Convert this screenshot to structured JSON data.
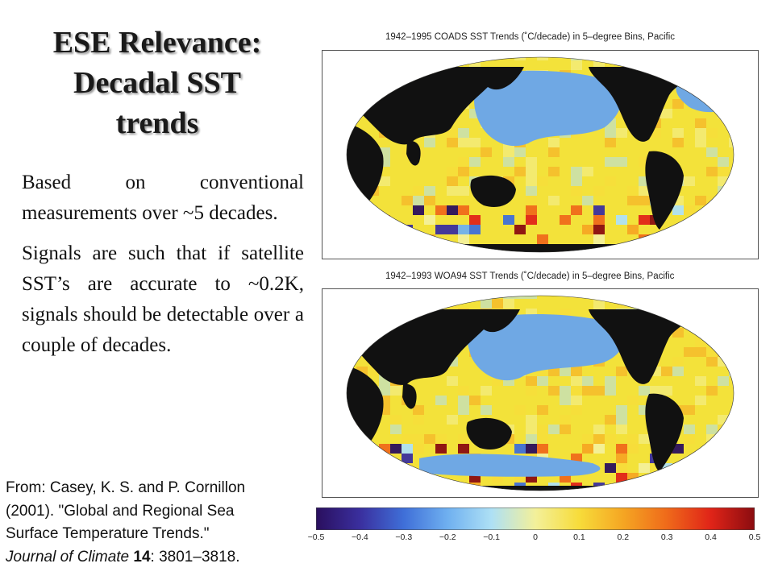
{
  "slide": {
    "title_lines": [
      "ESE Relevance:",
      "Decadal SST",
      "trends"
    ],
    "paragraphs": [
      "Based on conventional measurements over ~5 decades.",
      "Signals are such that if satellite SST’s are accurate to ~0.2K, signals should be detectable over a couple of decades."
    ],
    "citation": {
      "line1": "From: Casey, K. S. and P. Cornillon",
      "line2": "(2001). \"Global and Regional Sea",
      "line3": "Surface Temperature Trends.\"",
      "journal": "Journal of Climate",
      "volume": "14",
      "pages": ": 3801–3818."
    }
  },
  "maps": [
    {
      "title": "1942–1995 COADS SST Trends (˚C/decade) in 5–degree Bins, Pacific",
      "colors": {
        "land": "#111111",
        "dominant": "#f3e23a",
        "pacific": "#6fa8e4"
      }
    },
    {
      "title": "1942–1993 WOA94 SST Trends (˚C/decade) in 5–degree Bins, Pacific",
      "colors": {
        "land": "#111111",
        "dominant": "#f3e23a",
        "pacific": "#6fa8e4"
      }
    }
  ],
  "colorbar": {
    "ticks": [
      "−0.5",
      "−0.4",
      "−0.3",
      "−0.2",
      "−0.1",
      "0",
      "0.1",
      "0.2",
      "0.3",
      "0.4",
      "0.5"
    ],
    "colors": [
      "#2a0f5e",
      "#3a2f9e",
      "#3f6fd8",
      "#6fb0f0",
      "#aee0f5",
      "#f3f09a",
      "#f7dc3a",
      "#f5a623",
      "#ef6a1a",
      "#e02418",
      "#8a0c10"
    ]
  }
}
